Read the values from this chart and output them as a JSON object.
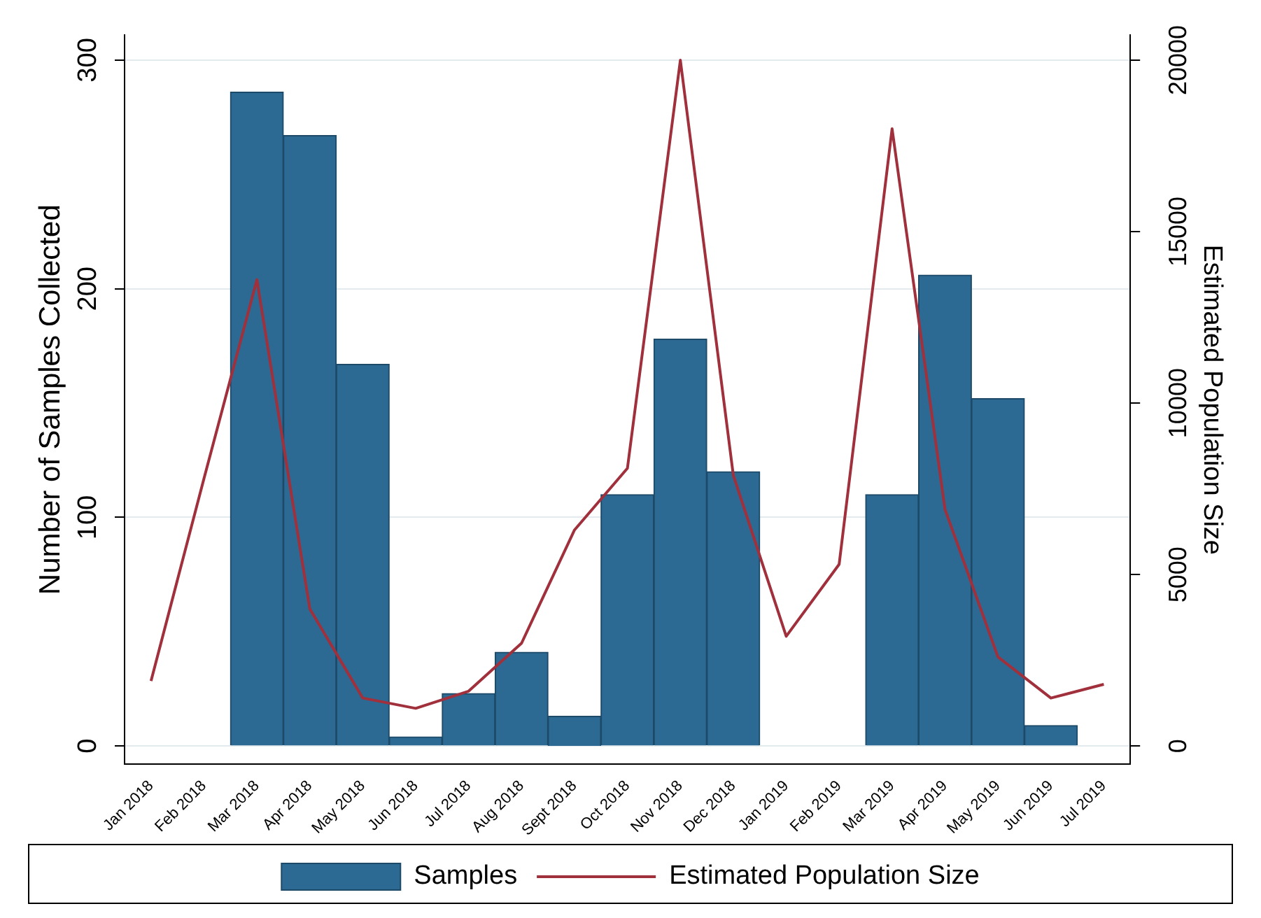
{
  "chart_data": {
    "type": "bar",
    "ylabel": "Number of Samples Collected",
    "y2label": "Estimated Population Size",
    "categories": [
      "Jan 2018",
      "Feb 2018",
      "Mar 2018",
      "Apr 2018",
      "May 2018",
      "Jun 2018",
      "Jul 2018",
      "Aug 2018",
      "Sept 2018",
      "Oct 2018",
      "Nov 2018",
      "Dec 2018",
      "Jan 2019",
      "Feb 2019",
      "Mar 2019",
      "Apr 2019",
      "May 2019",
      "Jun 2019",
      "Jul 2019"
    ],
    "series": [
      {
        "name": "Samples",
        "color": "#2c6a94",
        "values": [
          null,
          null,
          286,
          267,
          167,
          4,
          23,
          41,
          13,
          110,
          178,
          120,
          null,
          null,
          110,
          206,
          152,
          9,
          null
        ]
      },
      {
        "name": "Estimated Population Size",
        "type": "line",
        "axis": "y2",
        "color": "#a0303c",
        "values": [
          1900,
          7800,
          13600,
          4000,
          1400,
          1100,
          1600,
          3000,
          6300,
          8100,
          20000,
          7900,
          3200,
          5300,
          18000,
          6900,
          2600,
          1400,
          1800
        ]
      }
    ],
    "ylim": [
      -8,
      311
    ],
    "yticks": [
      0,
      100,
      200,
      300
    ],
    "y2lim": [
      -533,
      20733
    ],
    "y2ticks": [
      0,
      5000,
      10000,
      15000,
      20000
    ],
    "grid": "y",
    "legend": "bottom",
    "marker": "none",
    "line_style": "solid"
  }
}
